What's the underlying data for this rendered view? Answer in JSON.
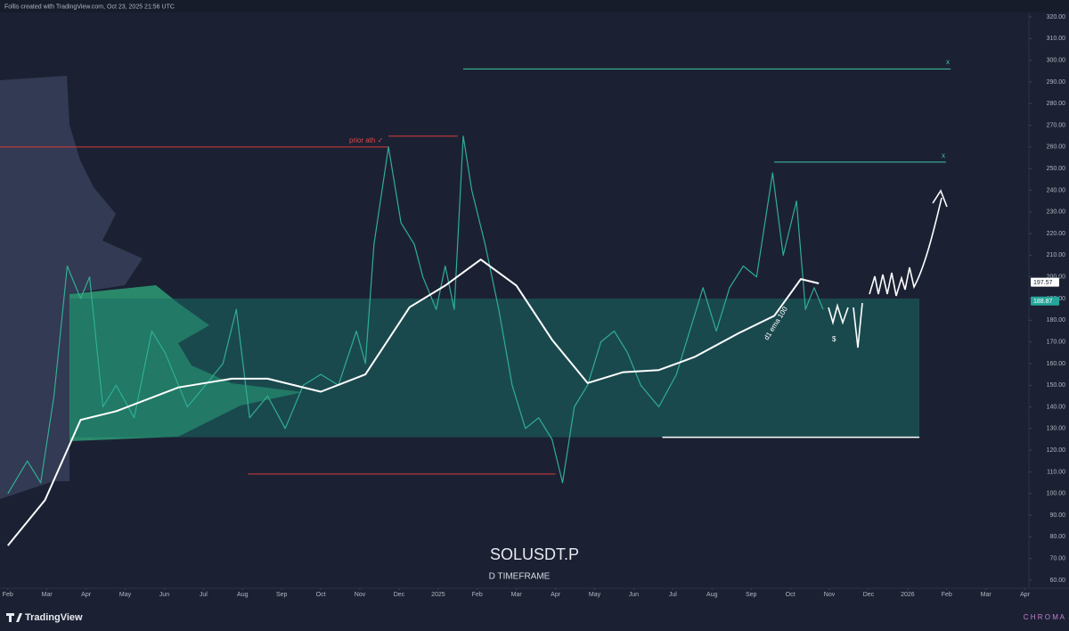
{
  "header": {
    "text": "Follis created with TradingView.com, Oct 23, 2025 21:56 UTC"
  },
  "footer": {
    "logo": "TradingView",
    "brand": "C H R O M A"
  },
  "chart_data": {
    "type": "line",
    "title": "SOLUSDT.P",
    "subtitle": "D TIMEFRAME",
    "xlim": [
      -0.2,
      26.1
    ],
    "ylim": [
      60,
      320
    ],
    "xticks": [
      {
        "value": 0,
        "label": "Feb"
      },
      {
        "value": 1,
        "label": "Mar"
      },
      {
        "value": 2,
        "label": "Apr"
      },
      {
        "value": 3,
        "label": "May"
      },
      {
        "value": 4,
        "label": "Jun"
      },
      {
        "value": 5,
        "label": "Jul"
      },
      {
        "value": 6,
        "label": "Aug"
      },
      {
        "value": 7,
        "label": "Sep"
      },
      {
        "value": 8,
        "label": "Oct"
      },
      {
        "value": 9,
        "label": "Nov"
      },
      {
        "value": 10,
        "label": "Dec"
      },
      {
        "value": 11,
        "label": "2025"
      },
      {
        "value": 12,
        "label": "Feb"
      },
      {
        "value": 13,
        "label": "Mar"
      },
      {
        "value": 14,
        "label": "Apr"
      },
      {
        "value": 15,
        "label": "May"
      },
      {
        "value": 16,
        "label": "Jun"
      },
      {
        "value": 17,
        "label": "Jul"
      },
      {
        "value": 18,
        "label": "Aug"
      },
      {
        "value": 19,
        "label": "Sep"
      },
      {
        "value": 20,
        "label": "Oct"
      },
      {
        "value": 21,
        "label": "Nov"
      },
      {
        "value": 22,
        "label": "Dec"
      },
      {
        "value": 23,
        "label": "2026"
      },
      {
        "value": 24,
        "label": "Feb"
      },
      {
        "value": 25,
        "label": "Mar"
      },
      {
        "value": 26,
        "label": "Apr"
      }
    ],
    "yticks": [
      {
        "value": 320,
        "label": "320.00"
      },
      {
        "value": 310,
        "label": "310.00"
      },
      {
        "value": 300,
        "label": "300.00"
      },
      {
        "value": 290,
        "label": "290.00"
      },
      {
        "value": 280,
        "label": "280.00"
      },
      {
        "value": 270,
        "label": "270.00"
      },
      {
        "value": 260,
        "label": "260.00"
      },
      {
        "value": 250,
        "label": "250.00"
      },
      {
        "value": 240,
        "label": "240.00"
      },
      {
        "value": 230,
        "label": "230.00"
      },
      {
        "value": 220,
        "label": "220.00"
      },
      {
        "value": 210,
        "label": "210.00"
      },
      {
        "value": 200,
        "label": "200.00"
      },
      {
        "value": 190,
        "label": "190.00"
      },
      {
        "value": 180,
        "label": "180.00"
      },
      {
        "value": 170,
        "label": "170.00"
      },
      {
        "value": 160,
        "label": "160.00"
      },
      {
        "value": 150,
        "label": "150.00"
      },
      {
        "value": 140,
        "label": "140.00"
      },
      {
        "value": 130,
        "label": "130.00"
      },
      {
        "value": 120,
        "label": "120.00"
      },
      {
        "value": 110,
        "label": "110.00"
      },
      {
        "value": 100,
        "label": "100.00"
      },
      {
        "value": 90,
        "label": "90.00"
      },
      {
        "value": 80,
        "label": "80.00"
      },
      {
        "value": 70,
        "label": "70.00"
      },
      {
        "value": 60,
        "label": "60.00"
      }
    ],
    "series": [
      {
        "color": "#2fae94",
        "x": [
          0,
          0.5,
          0.84,
          1.18,
          1.52,
          1.86,
          2.09,
          2.43,
          2.77,
          3.23,
          3.68,
          4.02,
          4.59,
          5.05,
          5.5,
          5.84,
          6.18,
          6.64,
          7.09,
          7.55,
          8,
          8.45,
          8.91,
          9.14,
          9.36,
          9.73,
          10.05,
          10.39,
          10.61,
          10.95,
          11.18,
          11.41,
          11.64,
          11.86,
          12.2,
          12.55,
          12.89,
          13.23,
          13.57,
          13.91,
          14.18,
          14.48,
          14.82,
          15.16,
          15.5,
          15.84,
          16.18,
          16.64,
          17.09,
          17.43,
          17.77,
          18.11,
          18.45,
          18.8,
          19.14,
          19.55,
          19.82,
          20.16,
          20.39,
          20.61,
          20.84
        ],
        "values": [
          100,
          115,
          105,
          145,
          205,
          190,
          200,
          140,
          150,
          135,
          175,
          165,
          140,
          150,
          160,
          185,
          135,
          145,
          130,
          150,
          155,
          150,
          175,
          160,
          215,
          260,
          225,
          215,
          200,
          185,
          205,
          185,
          265,
          240,
          215,
          185,
          150,
          130,
          135,
          125,
          105,
          140,
          150,
          170,
          175,
          165,
          150,
          140,
          155,
          175,
          195,
          175,
          195,
          205,
          200,
          248,
          210,
          235,
          185,
          195,
          185
        ]
      },
      {
        "color": "#ffffff",
        "x": [
          0,
          0.95,
          1.86,
          2.77,
          4.36,
          5.73,
          6.64,
          8,
          9.14,
          10.27,
          11.18,
          12.09,
          13,
          13.91,
          14.82,
          15.73,
          16.64,
          17.55,
          18.68,
          19.59,
          20.27,
          20.73
        ],
        "values": [
          76,
          97,
          134,
          138,
          149,
          153,
          153,
          147,
          155,
          186,
          196,
          208,
          196,
          171,
          151,
          156,
          157,
          163,
          174,
          182,
          199,
          197
        ]
      }
    ],
    "zone": {
      "range": [
        126,
        190
      ],
      "x": [
        1.59,
        23.3
      ],
      "color": "#1a6b63"
    },
    "levels": [
      {
        "value": 260,
        "x": [
          -0.2,
          9.73
        ],
        "color": "#d93a3a"
      },
      {
        "value": 265,
        "x": [
          9.73,
          11.5
        ],
        "color": "#d93a3a"
      },
      {
        "value": 296,
        "x": [
          11.64,
          24.1
        ],
        "color": "#3fc7a3"
      },
      {
        "value": 253,
        "x": [
          19.59,
          23.98
        ],
        "color": "#3fc7a3"
      },
      {
        "value": 126,
        "x": [
          16.73,
          23.3
        ],
        "color": "#ffffff"
      },
      {
        "value": 109,
        "x": [
          6.14,
          14.0
        ],
        "color": "#d93a3a"
      }
    ],
    "price_labels": [
      {
        "value": 197.57,
        "color": "#ffffff"
      },
      {
        "value": 188.87,
        "color": "#26a69a"
      }
    ],
    "annotations": [
      {
        "text": "prior ath ✓",
        "color": "#e04848"
      },
      {
        "text": "d1 ema 100",
        "color": "#ffffff"
      },
      {
        "text": "$",
        "color": "#ffffff"
      },
      {
        "text": "x",
        "color": "#3fc7a3"
      },
      {
        "text": "x",
        "color": "#3fc7a3"
      }
    ]
  }
}
